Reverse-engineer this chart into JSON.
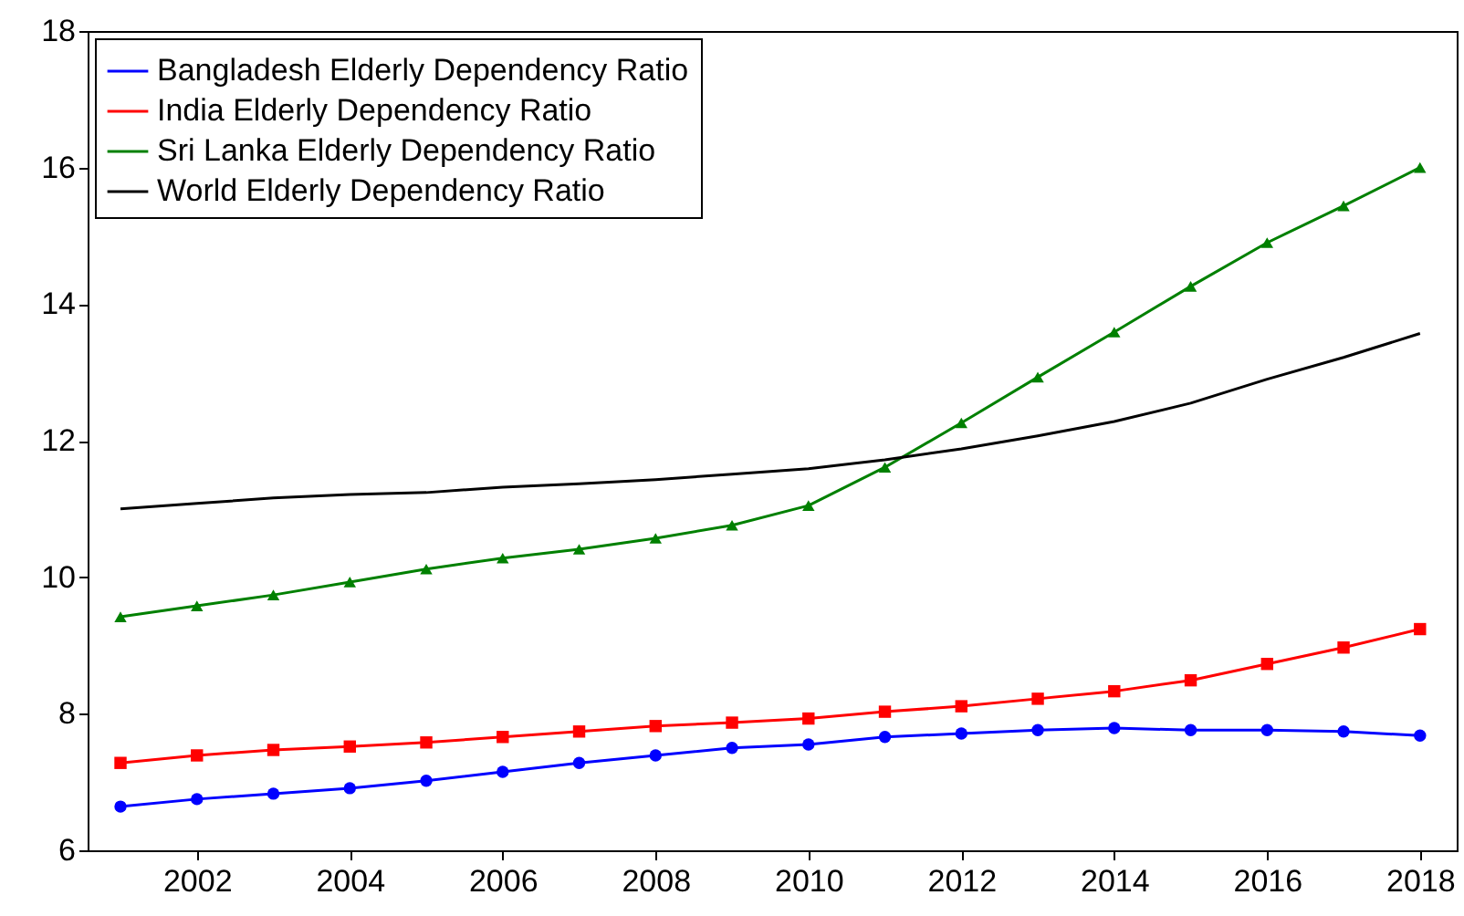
{
  "chart_data": {
    "type": "line",
    "x": [
      2001,
      2002,
      2003,
      2004,
      2005,
      2006,
      2007,
      2008,
      2009,
      2010,
      2011,
      2012,
      2013,
      2014,
      2015,
      2016,
      2017,
      2018
    ],
    "xlim": [
      2000.57,
      2018.48
    ],
    "xticks": [
      2002,
      2004,
      2006,
      2008,
      2010,
      2012,
      2014,
      2016,
      2018
    ],
    "ylim": [
      6,
      18
    ],
    "yticks": [
      6,
      8,
      10,
      12,
      14,
      16,
      18
    ],
    "grid": false,
    "legend": "top left",
    "line_style": "solid",
    "series": [
      {
        "name": "Bangladesh Elderly Dependency Ratio",
        "color": "#0000ff",
        "marker": "circle",
        "values": [
          6.64,
          6.75,
          6.83,
          6.91,
          7.02,
          7.15,
          7.28,
          7.39,
          7.5,
          7.55,
          7.66,
          7.71,
          7.76,
          7.79,
          7.76,
          7.76,
          7.74,
          7.68
        ]
      },
      {
        "name": "India Elderly Dependency Ratio",
        "color": "#ff0000",
        "marker": "square",
        "values": [
          7.28,
          7.39,
          7.47,
          7.52,
          7.58,
          7.66,
          7.74,
          7.82,
          7.87,
          7.93,
          8.03,
          8.11,
          8.22,
          8.33,
          8.49,
          8.73,
          8.97,
          9.24
        ]
      },
      {
        "name": "Sri Lanka Elderly Dependency Ratio",
        "color": "#008000",
        "marker": "triangle",
        "values": [
          9.42,
          9.58,
          9.74,
          9.93,
          10.12,
          10.28,
          10.41,
          10.57,
          10.76,
          11.05,
          11.61,
          12.26,
          12.93,
          13.59,
          14.26,
          14.9,
          15.44,
          16.0
        ]
      },
      {
        "name": "World Elderly Dependency Ratio",
        "color": "#000000",
        "marker": "none",
        "values": [
          11.0,
          11.08,
          11.16,
          11.21,
          11.24,
          11.32,
          11.37,
          11.43,
          11.51,
          11.59,
          11.72,
          11.88,
          12.07,
          12.28,
          12.55,
          12.9,
          13.22,
          13.57
        ]
      }
    ]
  }
}
